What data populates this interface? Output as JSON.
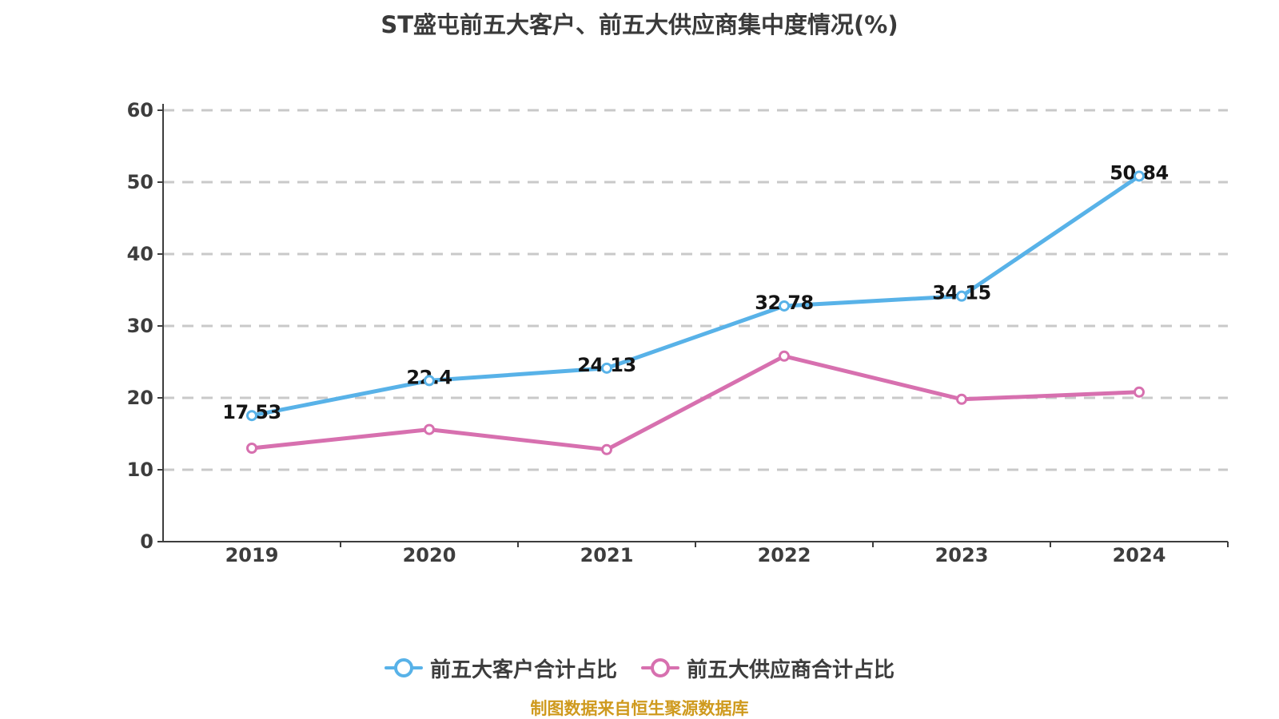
{
  "title": "ST盛屯前五大客户、前五大供应商集中度情况(%)",
  "footer": "制图数据来自恒生聚源数据库",
  "colors": {
    "background": "#ffffff",
    "title_text": "#3a3a3a",
    "axis": "#3d3d3d",
    "tick_label": "#3d3d3d",
    "gridline": "#c9c9c9",
    "data_label": "#141414",
    "footer_text": "#cf9a1e",
    "marker_fill": "#ffffff"
  },
  "chart_data": {
    "type": "line",
    "title": "ST盛屯前五大客户、前五大供应商集中度情况(%)",
    "categories": [
      "2019",
      "2020",
      "2021",
      "2022",
      "2023",
      "2024"
    ],
    "series": [
      {
        "name": "前五大客户合计占比",
        "color": "#58b2e8",
        "values": [
          17.53,
          22.4,
          24.13,
          32.78,
          34.15,
          50.84
        ],
        "labels": [
          "17.53",
          "22.4",
          "24.13",
          "32.78",
          "34.15",
          "50.84"
        ],
        "show_labels": true
      },
      {
        "name": "前五大供应商合计占比",
        "color": "#d770af",
        "values": [
          13.0,
          15.6,
          12.8,
          25.8,
          19.8,
          20.8
        ],
        "labels": [],
        "show_labels": false
      }
    ],
    "ylim": [
      0,
      60
    ],
    "y_ticks": [
      0,
      10,
      20,
      30,
      40,
      50,
      60
    ],
    "xlabel": "",
    "ylabel": "",
    "grid": "horizontal-dashed",
    "legend_position": "bottom",
    "annotation": "制图数据来自恒生聚源数据库"
  }
}
